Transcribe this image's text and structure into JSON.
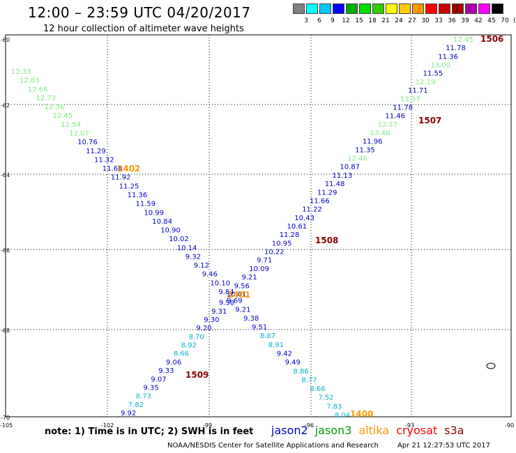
{
  "header": {
    "title": "12:00 – 23:59 UTC 04/20/2017",
    "subtitle": "12 hour collection of altimeter wave heights"
  },
  "color_scale": {
    "labels": [
      "3",
      "6",
      "9",
      "12",
      "15",
      "18",
      "21",
      "24",
      "27",
      "30",
      "33",
      "36",
      "39",
      "42",
      "45",
      "70",
      "(ft)"
    ],
    "colors": [
      "#808080",
      "#00ffff",
      "#00c8ff",
      "#0000ff",
      "#00aa00",
      "#00dd00",
      "#33cc00",
      "#ffff00",
      "#ffcc00",
      "#ff9900",
      "#ff0000",
      "#cc0000",
      "#990000",
      "#aa00aa",
      "#ff00ff",
      "#000000"
    ]
  },
  "axes": {
    "lon_ticks": [
      "-105",
      "-102",
      "-99",
      "-96",
      "-93",
      "-90"
    ],
    "lat_ticks": [
      "-60",
      "-62",
      "-64",
      "-66",
      "-68",
      "-70"
    ]
  },
  "sat_colors": {
    "jason2": "#0000c8",
    "jason3": "#0a960a",
    "altika": "#ff9900",
    "cryosat": "#ff0000",
    "s3a": "#880000",
    "light": "#7fe87f",
    "cyan": "#00b4c8",
    "dark": "#800000"
  },
  "passes": [
    {
      "text": "1402",
      "color": "#ff9900"
    },
    {
      "text": "1506",
      "color": "#880000"
    },
    {
      "text": "1507",
      "color": "#880000"
    },
    {
      "text": "1508",
      "color": "#880000"
    },
    {
      "text": "1401",
      "color": "#ff9900"
    },
    {
      "text": "1509",
      "color": "#880000"
    },
    {
      "text": "1400",
      "color": "#ff9900"
    }
  ],
  "track_a": [
    {
      "v": "12.33",
      "c": "light"
    },
    {
      "v": "12.83",
      "c": "light"
    },
    {
      "v": "12.66",
      "c": "light"
    },
    {
      "v": "12.72",
      "c": "light"
    },
    {
      "v": "12.36",
      "c": "light"
    },
    {
      "v": "12.45",
      "c": "light"
    },
    {
      "v": "12.54",
      "c": "light"
    },
    {
      "v": "12.07",
      "c": "light"
    },
    {
      "v": "10.76",
      "c": "jason2"
    },
    {
      "v": "11.29",
      "c": "jason2"
    },
    {
      "v": "11.32",
      "c": "jason2"
    },
    {
      "v": "11.68",
      "c": "jason2"
    },
    {
      "v": "11.92",
      "c": "jason2"
    },
    {
      "v": "11.25",
      "c": "jason2"
    },
    {
      "v": "11.36",
      "c": "jason2"
    },
    {
      "v": "11.59",
      "c": "jason2"
    },
    {
      "v": "10.99",
      "c": "jason2"
    },
    {
      "v": "10.84",
      "c": "jason2"
    },
    {
      "v": "10.90",
      "c": "jason2"
    },
    {
      "v": "10.02",
      "c": "jason2"
    },
    {
      "v": "10.14",
      "c": "jason2"
    },
    {
      "v": "9.32",
      "c": "jason2"
    },
    {
      "v": "9.12",
      "c": "jason2"
    },
    {
      "v": "9.46",
      "c": "jason2"
    },
    {
      "v": "10.10",
      "c": "jason2"
    },
    {
      "v": "9.84",
      "c": "jason2"
    },
    {
      "v": "9.69",
      "c": "jason2"
    },
    {
      "v": "9.21",
      "c": "jason2"
    },
    {
      "v": "9.38",
      "c": "jason2"
    },
    {
      "v": "9.51",
      "c": "jason2"
    },
    {
      "v": "8.87",
      "c": "cyan"
    },
    {
      "v": "8.91",
      "c": "cyan"
    },
    {
      "v": "9.42",
      "c": "jason2"
    },
    {
      "v": "9.49",
      "c": "jason2"
    },
    {
      "v": "8.86",
      "c": "cyan"
    },
    {
      "v": "8.77",
      "c": "cyan"
    },
    {
      "v": "8.66",
      "c": "cyan"
    },
    {
      "v": "7.52",
      "c": "cyan"
    },
    {
      "v": "7.83",
      "c": "cyan"
    },
    {
      "v": "8.04",
      "c": "cyan"
    }
  ],
  "track_b": [
    {
      "v": "12.45",
      "c": "light"
    },
    {
      "v": "11.78",
      "c": "jason2"
    },
    {
      "v": "11.36",
      "c": "jason2"
    },
    {
      "v": "13.00",
      "c": "light"
    },
    {
      "v": "11.55",
      "c": "jason2"
    },
    {
      "v": "12.19",
      "c": "light"
    },
    {
      "v": "11.71",
      "c": "jason2"
    },
    {
      "v": "12.37",
      "c": "light"
    },
    {
      "v": "11.78",
      "c": "jason2"
    },
    {
      "v": "11.46",
      "c": "jason2"
    },
    {
      "v": "12.17",
      "c": "light"
    },
    {
      "v": "13.46",
      "c": "light"
    },
    {
      "v": "11.96",
      "c": "jason2"
    },
    {
      "v": "11.35",
      "c": "jason2"
    },
    {
      "v": "12.46",
      "c": "light"
    },
    {
      "v": "10.87",
      "c": "jason2"
    },
    {
      "v": "11.13",
      "c": "jason2"
    },
    {
      "v": "11.48",
      "c": "jason2"
    },
    {
      "v": "11.29",
      "c": "jason2"
    },
    {
      "v": "11.66",
      "c": "jason2"
    },
    {
      "v": "11.22",
      "c": "jason2"
    },
    {
      "v": "10.43",
      "c": "jason2"
    },
    {
      "v": "10.61",
      "c": "jason2"
    },
    {
      "v": "11.28",
      "c": "jason2"
    },
    {
      "v": "10.95",
      "c": "jason2"
    },
    {
      "v": "10.22",
      "c": "jason2"
    },
    {
      "v": "9.71",
      "c": "jason2"
    },
    {
      "v": "10.09",
      "c": "jason2"
    },
    {
      "v": "9.21",
      "c": "jason2"
    },
    {
      "v": "9.56",
      "c": "jason2"
    },
    {
      "v": "10.01",
      "c": "jason2"
    },
    {
      "v": "9.50",
      "c": "jason2"
    },
    {
      "v": "9.31",
      "c": "jason2"
    },
    {
      "v": "9.30",
      "c": "jason2"
    },
    {
      "v": "9.20",
      "c": "jason2"
    },
    {
      "v": "8.70",
      "c": "cyan"
    },
    {
      "v": "8.92",
      "c": "cyan"
    },
    {
      "v": "8.66",
      "c": "cyan"
    },
    {
      "v": "9.06",
      "c": "jason2"
    },
    {
      "v": "9.33",
      "c": "jason2"
    },
    {
      "v": "9.07",
      "c": "jason2"
    },
    {
      "v": "9.35",
      "c": "jason2"
    },
    {
      "v": "8.73",
      "c": "cyan"
    },
    {
      "v": "7.82",
      "c": "cyan"
    },
    {
      "v": "9.92",
      "c": "jason2"
    }
  ],
  "footer": {
    "note": "note: 1) Time is in UTC; 2) SWH is in feet",
    "legend": [
      {
        "text": "jason2",
        "color": "#0000c8"
      },
      {
        "text": "jason3",
        "color": "#0a960a"
      },
      {
        "text": "altika",
        "color": "#ff9900"
      },
      {
        "text": "cryosat",
        "color": "#ff0000"
      },
      {
        "text": "s3a",
        "color": "#880000"
      }
    ],
    "credit": "NOAA/NESDIS Center for Satellite Applications and Research",
    "timestamp": "Apr 21 12:27:53 UTC 2017"
  }
}
